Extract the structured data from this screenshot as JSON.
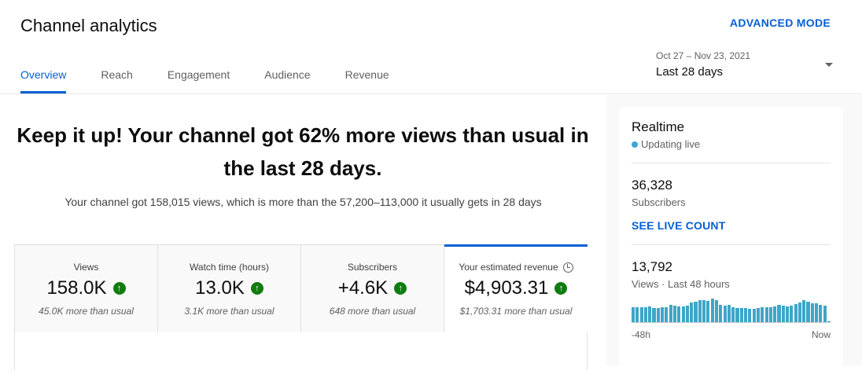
{
  "header": {
    "title": "Channel analytics",
    "advanced_mode": "ADVANCED MODE",
    "tabs": [
      {
        "label": "Overview",
        "active": true
      },
      {
        "label": "Reach"
      },
      {
        "label": "Engagement"
      },
      {
        "label": "Audience"
      },
      {
        "label": "Revenue"
      }
    ],
    "date_range": "Oct 27 – Nov 23, 2021",
    "date_label": "Last 28 days"
  },
  "main": {
    "headline": "Keep it up! Your channel got 62% more views than usual in the last 28 days.",
    "subtext": "Your channel got 158,015 views, which is more than the 57,200–113,000 it usually gets in 28 days",
    "cards": [
      {
        "label": "Views",
        "value": "158.0K",
        "note": "45.0K more than usual",
        "trend": "up"
      },
      {
        "label": "Watch time (hours)",
        "value": "13.0K",
        "note": "3.1K more than usual",
        "trend": "up"
      },
      {
        "label": "Subscribers",
        "value": "+4.6K",
        "note": "648 more than usual",
        "trend": "up"
      },
      {
        "label": "Your estimated revenue",
        "value": "$4,903.31",
        "note": "$1,703.31 more than usual",
        "trend": "up",
        "selected": true
      }
    ],
    "up_icon": "↑"
  },
  "realtime": {
    "title": "Realtime",
    "status": "Updating live",
    "subscribers": "36,328",
    "subscribers_label": "Subscribers",
    "live_link": "SEE LIVE COUNT",
    "views": "13,792",
    "views_label": "Views · Last 48 hours",
    "axis_start": "-48h",
    "axis_end": "Now",
    "chart_data": {
      "type": "bar",
      "values": [
        18,
        18,
        18,
        18,
        19,
        17,
        17,
        18,
        18,
        21,
        20,
        19,
        19,
        20,
        24,
        25,
        27,
        27,
        26,
        29,
        27,
        21,
        20,
        21,
        18,
        17,
        17,
        17,
        16,
        16,
        17,
        18,
        18,
        18,
        19,
        21,
        20,
        19,
        20,
        22,
        24,
        27,
        25,
        23,
        23,
        21,
        20,
        1
      ]
    }
  },
  "colors": {
    "accent": "#065fd4",
    "up": "#107c10",
    "bar": "#3ea6c8"
  }
}
